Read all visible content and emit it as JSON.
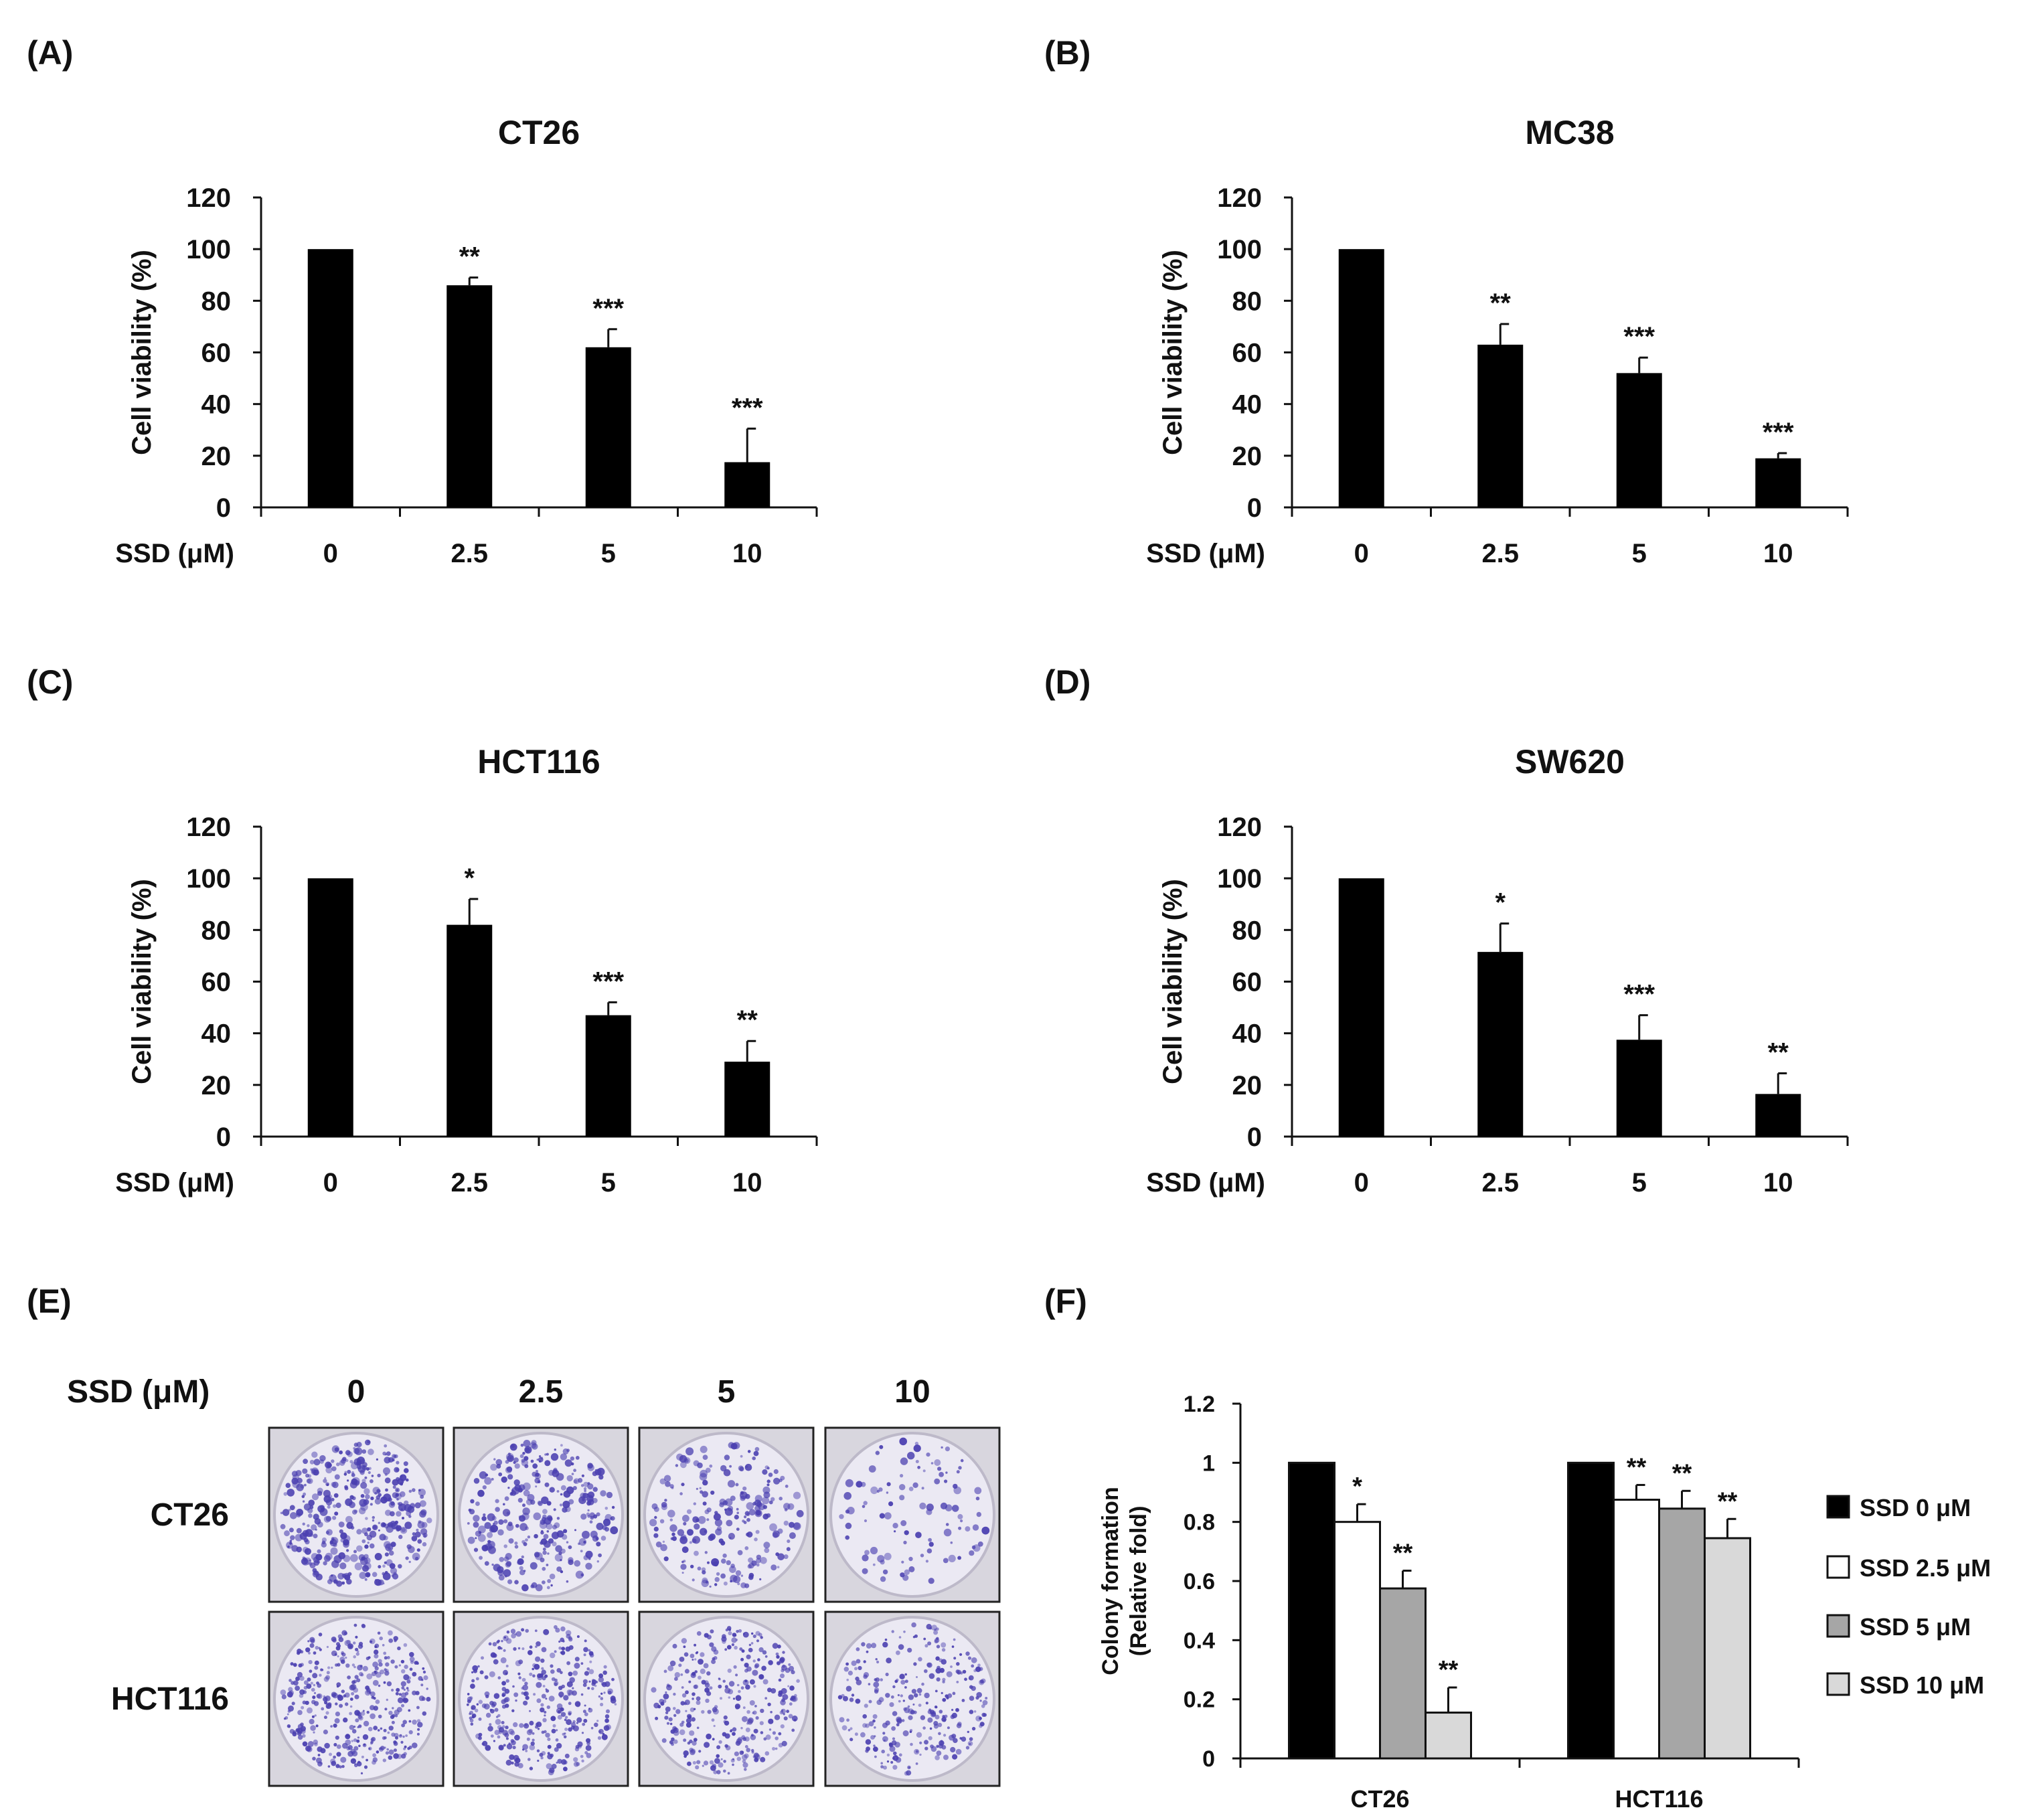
{
  "panels": {
    "A": "(A)",
    "B": "(B)",
    "C": "(C)",
    "D": "(D)",
    "E": "(E)",
    "F": "(F)"
  },
  "chart_data": [
    {
      "id": "A",
      "type": "bar",
      "title": "CT26",
      "ylabel": "Cell viability (%)",
      "xlabel": "SSD (μM)",
      "categories": [
        "0",
        "2.5",
        "5",
        "10"
      ],
      "values": [
        100,
        86,
        62,
        17.5
      ],
      "errors": [
        0,
        3,
        7,
        13
      ],
      "significance": [
        "",
        "**",
        "***",
        "***"
      ],
      "ylim": [
        0,
        120
      ],
      "yticks": [
        0,
        20,
        40,
        60,
        80,
        100,
        120
      ]
    },
    {
      "id": "B",
      "type": "bar",
      "title": "MC38",
      "ylabel": "Cell viability (%)",
      "xlabel": "SSD (μM)",
      "categories": [
        "0",
        "2.5",
        "5",
        "10"
      ],
      "values": [
        100,
        63,
        52,
        19
      ],
      "errors": [
        0,
        8,
        6,
        2
      ],
      "significance": [
        "",
        "**",
        "***",
        "***"
      ],
      "ylim": [
        0,
        120
      ],
      "yticks": [
        0,
        20,
        40,
        60,
        80,
        100,
        120
      ]
    },
    {
      "id": "C",
      "type": "bar",
      "title": "HCT116",
      "ylabel": "Cell viability (%)",
      "xlabel": "SSD (μM)",
      "categories": [
        "0",
        "2.5",
        "5",
        "10"
      ],
      "values": [
        100,
        82,
        47,
        29
      ],
      "errors": [
        0,
        10,
        5,
        8
      ],
      "significance": [
        "",
        "*",
        "***",
        "**"
      ],
      "ylim": [
        0,
        120
      ],
      "yticks": [
        0,
        20,
        40,
        60,
        80,
        100,
        120
      ]
    },
    {
      "id": "D",
      "type": "bar",
      "title": "SW620",
      "ylabel": "Cell viability (%)",
      "xlabel": "SSD (μM)",
      "categories": [
        "0",
        "2.5",
        "5",
        "10"
      ],
      "values": [
        100,
        71.5,
        37.5,
        16.5
      ],
      "errors": [
        0,
        11,
        9.5,
        8
      ],
      "significance": [
        "",
        "*",
        "***",
        "**"
      ],
      "ylim": [
        0,
        120
      ],
      "yticks": [
        0,
        20,
        40,
        60,
        80,
        100,
        120
      ]
    },
    {
      "id": "F",
      "type": "bar",
      "ylabel": "Colony formation (Relative fold)",
      "ylabel_lines": [
        "Colony formation",
        "(Relative fold)"
      ],
      "categories": [
        "CT26",
        "HCT116"
      ],
      "series": [
        {
          "name": "SSD 0 μM",
          "color": "#000000",
          "values": [
            1,
            1
          ],
          "errors": [
            0,
            0
          ],
          "significance": [
            "",
            ""
          ]
        },
        {
          "name": "SSD 2.5 μM",
          "color": "#ffffff",
          "values": [
            0.8,
            0.875
          ],
          "errors": [
            0.06,
            0.05
          ],
          "significance": [
            "*",
            "**"
          ]
        },
        {
          "name": "SSD 5 μM",
          "color": "#a6a6a6",
          "values": [
            0.575,
            0.845
          ],
          "errors": [
            0.06,
            0.06
          ],
          "significance": [
            "**",
            "**"
          ]
        },
        {
          "name": "SSD 10 μM",
          "color": "#d9d9d9",
          "values": [
            0.155,
            0.745
          ],
          "errors": [
            0.085,
            0.065
          ],
          "significance": [
            "**",
            "**"
          ]
        }
      ],
      "ylim": [
        0,
        1.2
      ],
      "yticks": [
        "0",
        "0.2",
        "0.4",
        "0.6",
        "0.8",
        "1",
        "1.2"
      ]
    }
  ],
  "colony_panel": {
    "header_label": "SSD  (μM)",
    "concentrations": [
      "0",
      "2.5",
      "5",
      "10"
    ],
    "rows": [
      "CT26",
      "HCT116"
    ],
    "colors": {
      "stain": "#4a3fb0",
      "plate": "#ebe9f3",
      "frame": "#222222"
    }
  }
}
